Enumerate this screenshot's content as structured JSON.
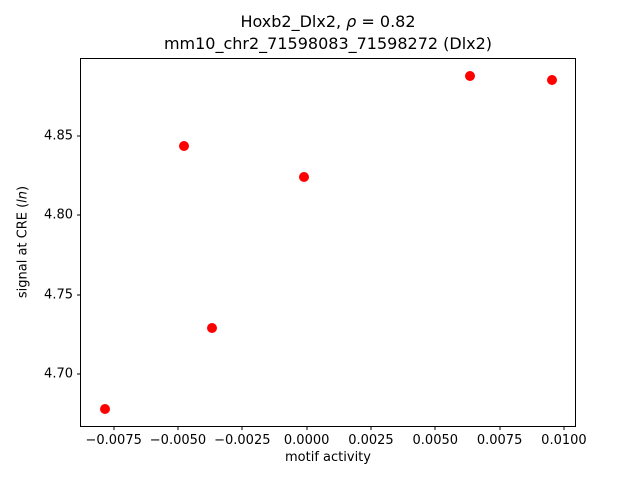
{
  "title": {
    "line1_prefix": "Hoxb2_Dlx2, ",
    "line1_rho": "ρ",
    "line1_suffix": " = 0.82",
    "line2": "mm10_chr2_71598083_71598272 (Dlx2)"
  },
  "axes": {
    "xlabel": "motif activity",
    "ylabel_prefix": "signal at CRE (",
    "ylabel_italic": "ln",
    "ylabel_suffix": ")"
  },
  "chart_data": {
    "type": "scatter",
    "title": "Hoxb2_Dlx2, ρ = 0.82\nmm10_chr2_71598083_71598272 (Dlx2)",
    "xlabel": "motif activity",
    "ylabel": "signal at CRE (ln)",
    "marker_color": "#ff0000",
    "spine_color": "#000000",
    "background_color": "#ffffff",
    "grid": false,
    "legend": false,
    "xlim": [
      -0.00877,
      0.01043
    ],
    "ylim": [
      4.6675,
      4.8985
    ],
    "xticks": [
      -0.0075,
      -0.005,
      -0.0025,
      0.0,
      0.0025,
      0.005,
      0.0075,
      0.01
    ],
    "xtick_labels": [
      "−0.0075",
      "−0.0050",
      "−0.0025",
      "0.0000",
      "0.0025",
      "0.0050",
      "0.0075",
      "0.0100"
    ],
    "yticks": [
      4.7,
      4.75,
      4.8,
      4.85
    ],
    "ytick_labels": [
      "4.70",
      "4.75",
      "4.80",
      "4.85"
    ],
    "points": [
      {
        "x": -0.00785,
        "y": 4.678
      },
      {
        "x": -0.00477,
        "y": 4.844
      },
      {
        "x": -0.00368,
        "y": 4.729
      },
      {
        "x": -0.0001,
        "y": 4.824
      },
      {
        "x": 0.00633,
        "y": 4.888
      },
      {
        "x": 0.00953,
        "y": 4.885
      }
    ]
  }
}
